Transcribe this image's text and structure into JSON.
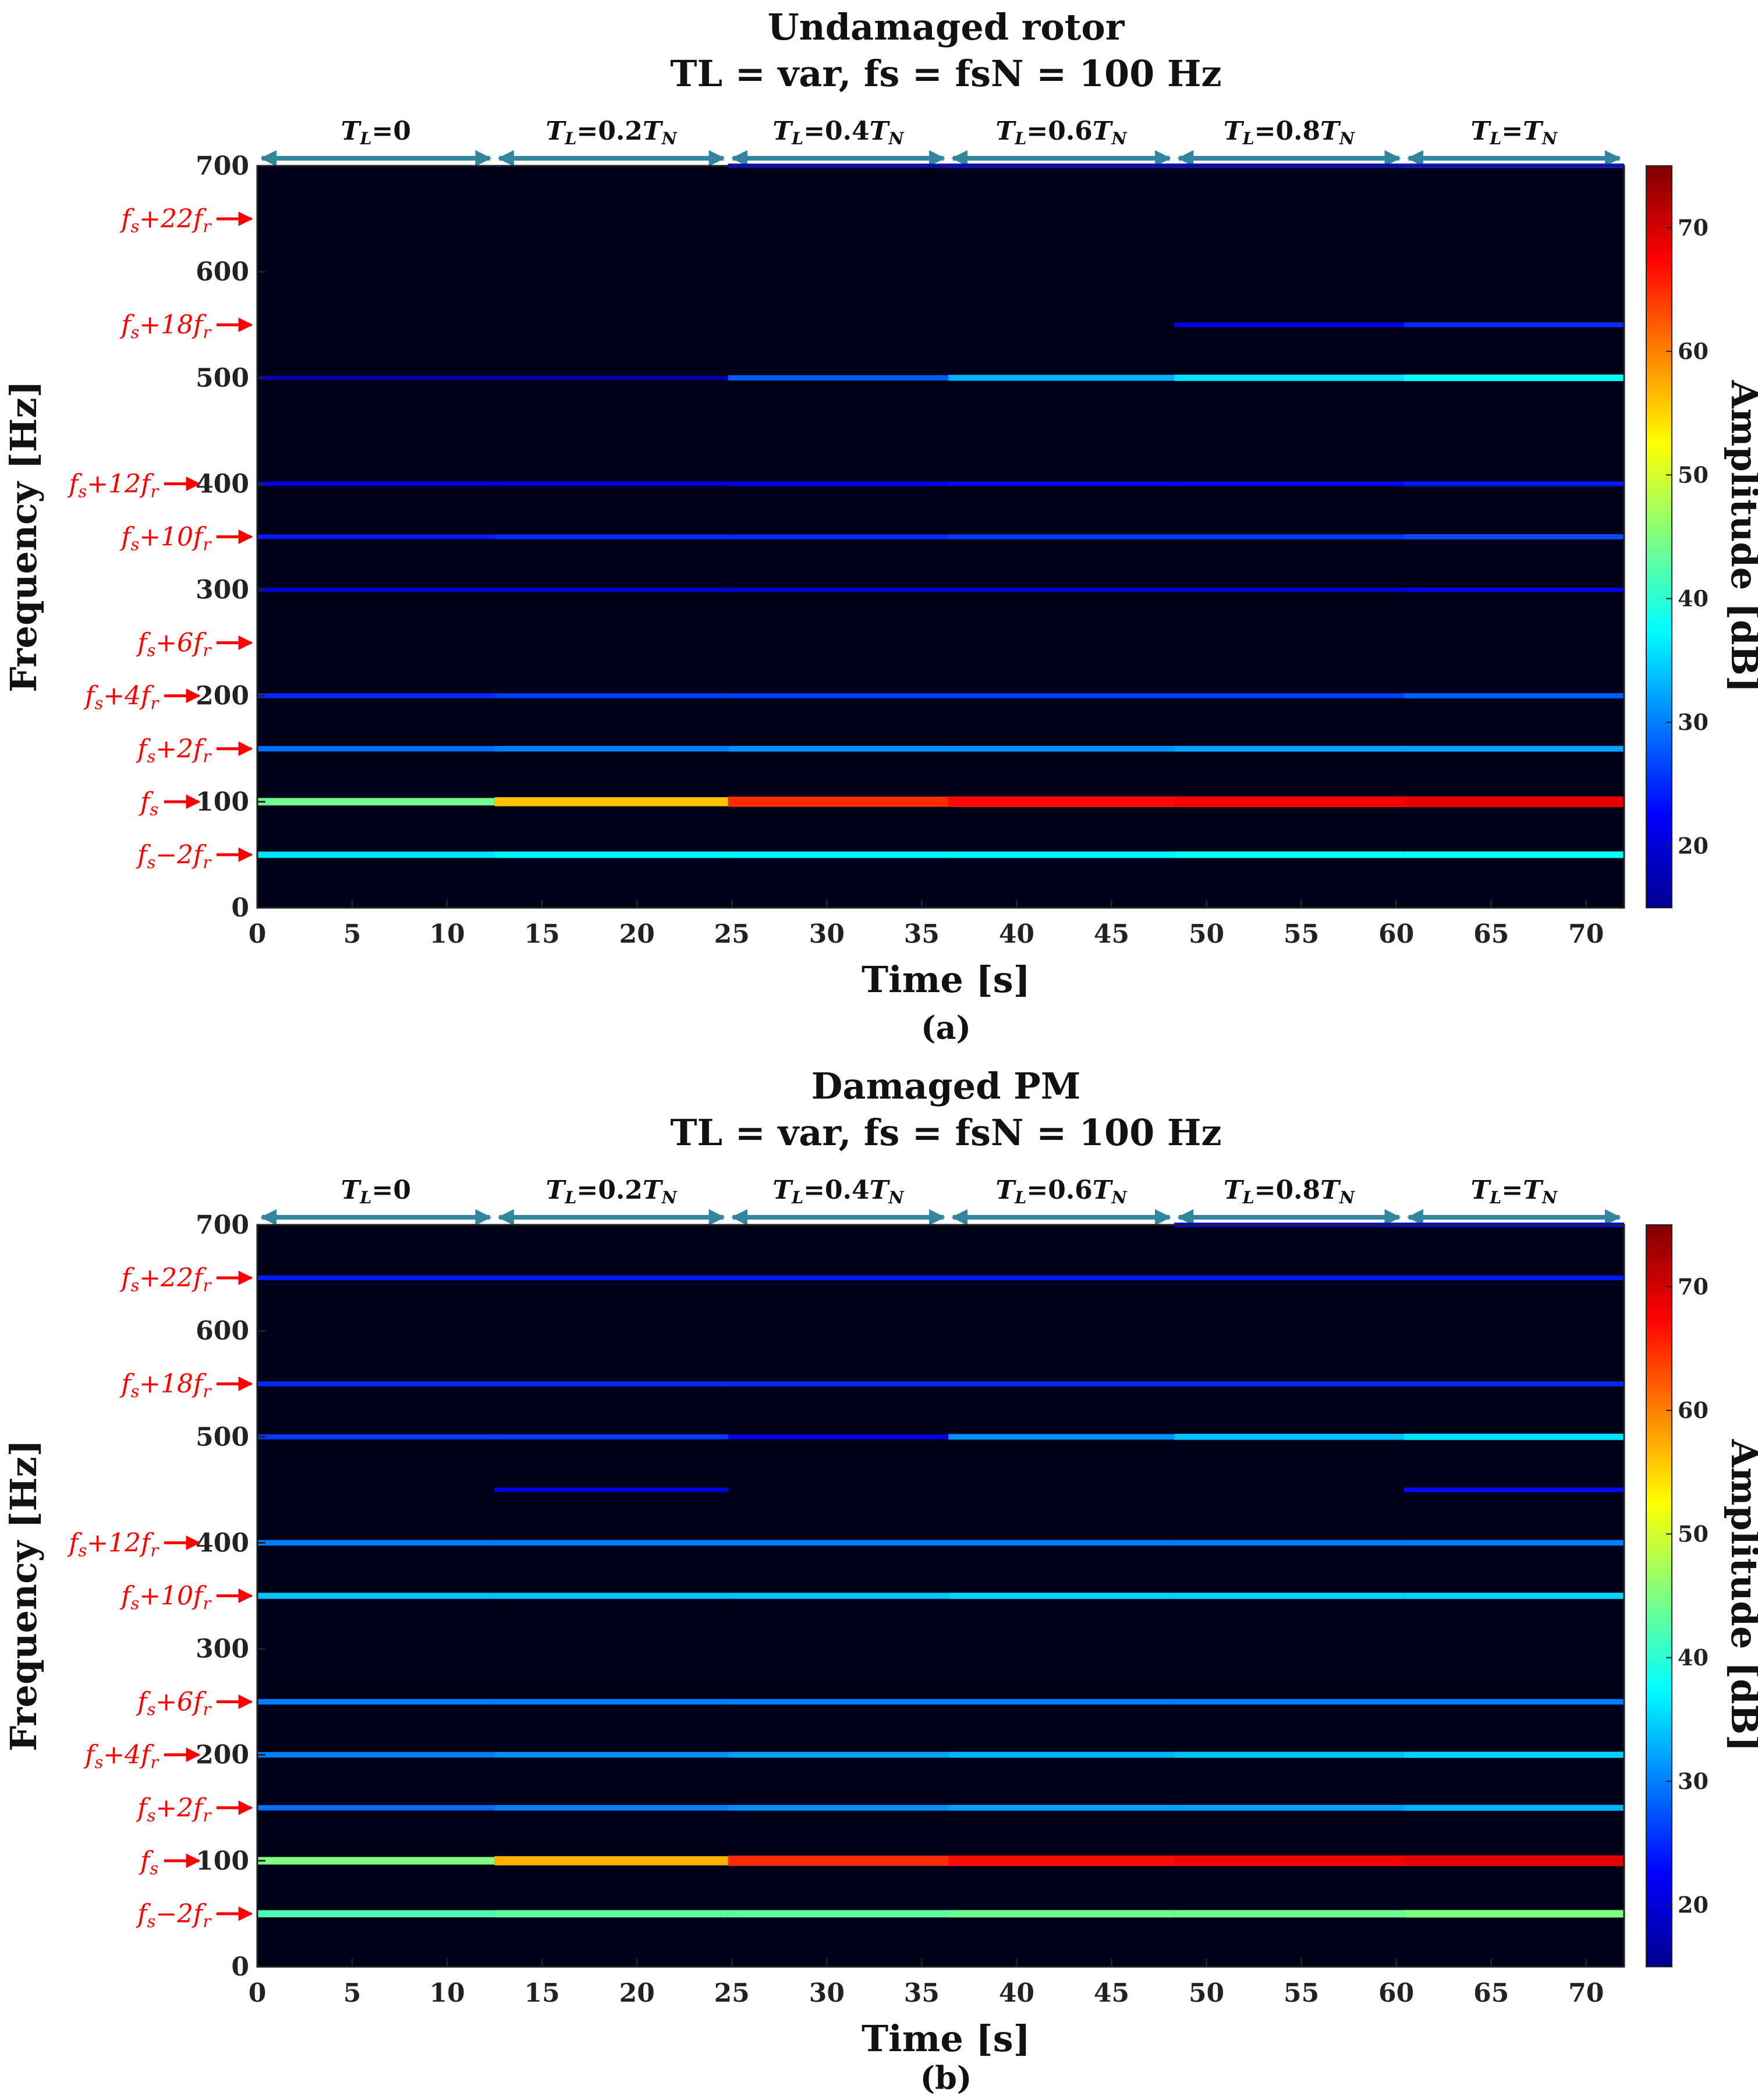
{
  "chart_data": [
    {
      "type": "heatmap",
      "panel_label": "(a)",
      "title": "Undamaged rotor",
      "subtitle": "TL = var, fs = fsN = 100 Hz",
      "xlabel": "Time [s]",
      "ylabel": "Frequency [Hz]",
      "xlim": [
        0,
        72
      ],
      "ylim": [
        0,
        700
      ],
      "x_ticks": [
        0,
        5,
        10,
        15,
        20,
        25,
        30,
        35,
        40,
        45,
        50,
        55,
        60,
        65,
        70
      ],
      "y_ticks": [
        0,
        100,
        200,
        300,
        400,
        500,
        600,
        700
      ],
      "colorbar": {
        "label": "Amplitude [dB]",
        "range": [
          15,
          75
        ],
        "ticks": [
          20,
          30,
          40,
          50,
          60,
          70
        ]
      },
      "segments": [
        {
          "label": "TL=0",
          "start": 0,
          "end": 12.5
        },
        {
          "label": "TL=0.2TN",
          "start": 12.5,
          "end": 24.8
        },
        {
          "label": "TL=0.4TN",
          "start": 24.8,
          "end": 36.4
        },
        {
          "label": "TL=0.6TN",
          "start": 36.4,
          "end": 48.3
        },
        {
          "label": "TL=0.8TN",
          "start": 48.3,
          "end": 60.4
        },
        {
          "label": "TL=TN",
          "start": 60.4,
          "end": 72
        }
      ],
      "annotations": [
        {
          "label": "fs+22fr",
          "freq": 650
        },
        {
          "label": "fs+18fr",
          "freq": 550
        },
        {
          "label": "fs+12fr",
          "freq": 400
        },
        {
          "label": "fs+10fr",
          "freq": 350
        },
        {
          "label": "fs+6fr",
          "freq": 250
        },
        {
          "label": "fs+4fr",
          "freq": 200
        },
        {
          "label": "fs+2fr",
          "freq": 150
        },
        {
          "label": "fs",
          "freq": 100
        },
        {
          "label": "fs−2fr",
          "freq": 50
        }
      ],
      "series": [
        {
          "name": "50 Hz",
          "freq": 50,
          "values_db": [
            36,
            37,
            37,
            37,
            38,
            38
          ]
        },
        {
          "name": "100 Hz",
          "freq": 100,
          "values_db": [
            44,
            56,
            65,
            67,
            68,
            69
          ]
        },
        {
          "name": "150 Hz",
          "freq": 150,
          "values_db": [
            29,
            30,
            31,
            31,
            32,
            32
          ]
        },
        {
          "name": "200 Hz",
          "freq": 200,
          "values_db": [
            25,
            26,
            26,
            26,
            26,
            28
          ]
        },
        {
          "name": "300 Hz",
          "freq": 300,
          "values_db": [
            20,
            20,
            20,
            20,
            20,
            21
          ]
        },
        {
          "name": "350 Hz",
          "freq": 350,
          "values_db": [
            24,
            25,
            25,
            26,
            26,
            27
          ]
        },
        {
          "name": "400 Hz",
          "freq": 400,
          "values_db": [
            21,
            21,
            22,
            23,
            23,
            24
          ]
        },
        {
          "name": "500 Hz",
          "freq": 500,
          "values_db": [
            18,
            18,
            28,
            33,
            36,
            38
          ]
        },
        {
          "name": "550 Hz",
          "freq": 550,
          "values_db": [
            0,
            0,
            0,
            0,
            22,
            25
          ]
        },
        {
          "name": "700 Hz",
          "freq": 700,
          "values_db": [
            0,
            0,
            22,
            23,
            23,
            24
          ]
        }
      ]
    },
    {
      "type": "heatmap",
      "panel_label": "(b)",
      "title": "Damaged PM",
      "subtitle": "TL = var, fs = fsN = 100 Hz",
      "xlabel": "Time [s]",
      "ylabel": "Frequency [Hz]",
      "xlim": [
        0,
        72
      ],
      "ylim": [
        0,
        700
      ],
      "x_ticks": [
        0,
        5,
        10,
        15,
        20,
        25,
        30,
        35,
        40,
        45,
        50,
        55,
        60,
        65,
        70
      ],
      "y_ticks": [
        0,
        100,
        200,
        300,
        400,
        500,
        600,
        700
      ],
      "colorbar": {
        "label": "Amplitude [dB]",
        "range": [
          15,
          75
        ],
        "ticks": [
          20,
          30,
          40,
          50,
          60,
          70
        ]
      },
      "segments": [
        {
          "label": "TL=0",
          "start": 0,
          "end": 12.5
        },
        {
          "label": "TL=0.2TN",
          "start": 12.5,
          "end": 24.8
        },
        {
          "label": "TL=0.4TN",
          "start": 24.8,
          "end": 36.4
        },
        {
          "label": "TL=0.6TN",
          "start": 36.4,
          "end": 48.3
        },
        {
          "label": "TL=0.8TN",
          "start": 48.3,
          "end": 60.4
        },
        {
          "label": "TL=TN",
          "start": 60.4,
          "end": 72
        }
      ],
      "annotations": [
        {
          "label": "fs+22fr",
          "freq": 650
        },
        {
          "label": "fs+18fr",
          "freq": 550
        },
        {
          "label": "fs+12fr",
          "freq": 400
        },
        {
          "label": "fs+10fr",
          "freq": 350
        },
        {
          "label": "fs+6fr",
          "freq": 250
        },
        {
          "label": "fs+4fr",
          "freq": 200
        },
        {
          "label": "fs+2fr",
          "freq": 150
        },
        {
          "label": "fs",
          "freq": 100
        },
        {
          "label": "fs−2fr",
          "freq": 50
        }
      ],
      "series": [
        {
          "name": "50 Hz",
          "freq": 50,
          "values_db": [
            42,
            43,
            43,
            44,
            44,
            45
          ]
        },
        {
          "name": "100 Hz",
          "freq": 100,
          "values_db": [
            45,
            57,
            65,
            67,
            68,
            69
          ]
        },
        {
          "name": "150 Hz",
          "freq": 150,
          "values_db": [
            29,
            30,
            31,
            32,
            32,
            33
          ]
        },
        {
          "name": "200 Hz",
          "freq": 200,
          "values_db": [
            30,
            31,
            32,
            33,
            34,
            35
          ]
        },
        {
          "name": "250 Hz",
          "freq": 250,
          "values_db": [
            30,
            30,
            30,
            30,
            30,
            30
          ]
        },
        {
          "name": "350 Hz",
          "freq": 350,
          "values_db": [
            34,
            34,
            34,
            35,
            35,
            35
          ]
        },
        {
          "name": "400 Hz",
          "freq": 400,
          "values_db": [
            30,
            30,
            30,
            30,
            30,
            30
          ]
        },
        {
          "name": "450 Hz",
          "freq": 450,
          "values_db": [
            0,
            21,
            0,
            0,
            0,
            23
          ]
        },
        {
          "name": "500 Hz",
          "freq": 500,
          "values_db": [
            26,
            26,
            22,
            31,
            34,
            36
          ]
        },
        {
          "name": "550 Hz",
          "freq": 550,
          "values_db": [
            25,
            25,
            25,
            25,
            25,
            25
          ]
        },
        {
          "name": "650 Hz",
          "freq": 650,
          "values_db": [
            24,
            24,
            24,
            24,
            24,
            24
          ]
        },
        {
          "name": "700 Hz",
          "freq": 700,
          "values_db": [
            0,
            0,
            0,
            0,
            22,
            23
          ]
        }
      ]
    }
  ]
}
